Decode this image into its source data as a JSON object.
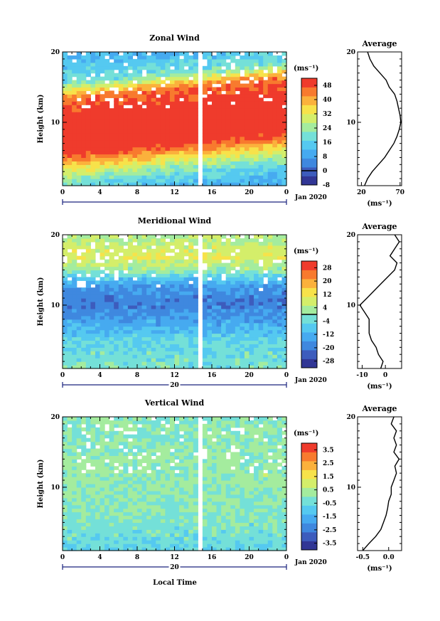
{
  "figure": {
    "date_label": "Jan 2020",
    "day_label": "20",
    "shared_xlabel": "Local Time",
    "colormap": [
      "#313695",
      "#3d5cbd",
      "#3f88df",
      "#46aaf0",
      "#55c9f0",
      "#74e0d8",
      "#a4ec9e",
      "#d4ee6a",
      "#f7e24a",
      "#fbb13c",
      "#f87a2e",
      "#ef3b2c"
    ]
  },
  "chart_data": [
    {
      "type": "heatmap",
      "title": "Zonal Wind",
      "ylabel": "Height (km)",
      "xlabel": "Local Time",
      "x_ticks": [
        "0",
        "4",
        "8",
        "12",
        "16",
        "20",
        "0"
      ],
      "xlim": [
        0,
        24
      ],
      "ylim": [
        1,
        20
      ],
      "y_ticks": [
        "10",
        "20"
      ],
      "colorbar": {
        "unit": "(ms⁻¹)",
        "ticks": [
          "48",
          "40",
          "32",
          "24",
          "16",
          "8",
          "0",
          "-8"
        ],
        "range": [
          -8,
          52
        ],
        "contour_level": 0
      },
      "z_profile_by_height": {
        "heights_km": [
          1,
          3,
          5,
          7,
          9,
          11,
          13,
          15,
          17,
          20
        ],
        "values": [
          12,
          20,
          34,
          50,
          56,
          54,
          50,
          44,
          20,
          12
        ]
      },
      "data_gaps": {
        "local_time_h": [
          14.5,
          15.0
        ],
        "note": "white = missing data"
      },
      "average_profile": {
        "title": "Average",
        "xlabel": "(ms⁻¹)",
        "x_ticks": [
          "20",
          "70"
        ],
        "xlim": [
          15,
          72
        ],
        "heights_km": [
          1,
          2,
          3,
          4,
          5,
          6,
          7,
          8,
          9,
          10,
          11,
          12,
          13,
          14,
          15,
          16,
          17,
          18,
          19,
          20
        ],
        "values": [
          24,
          28,
          34,
          42,
          50,
          56,
          62,
          66,
          69,
          71,
          70,
          68,
          66,
          63,
          56,
          52,
          44,
          36,
          31,
          28
        ]
      }
    },
    {
      "type": "heatmap",
      "title": "Meridional Wind",
      "ylabel": "Height (km)",
      "xlabel": "Local Time",
      "x_ticks": [
        "0",
        "4",
        "8",
        "12",
        "16",
        "20",
        "0"
      ],
      "xlim": [
        0,
        24
      ],
      "ylim": [
        1,
        20
      ],
      "y_ticks": [
        "10",
        "20"
      ],
      "colorbar": {
        "unit": "(ms⁻¹)",
        "ticks": [
          "28",
          "20",
          "12",
          "4",
          "-4",
          "-12",
          "-20",
          "-28"
        ],
        "range": [
          -32,
          32
        ],
        "contour_level": 0
      },
      "z_profile_by_height": {
        "heights_km": [
          1,
          3,
          5,
          7,
          9,
          11,
          13,
          15,
          17,
          20
        ],
        "values": [
          -2,
          -3,
          -6,
          -12,
          -18,
          -20,
          -14,
          2,
          10,
          4
        ]
      },
      "data_gaps": {
        "local_time_h": [
          14.5,
          15.0
        ],
        "note": "white = missing data"
      },
      "average_profile": {
        "title": "Average",
        "xlabel": "(ms⁻¹)",
        "x_ticks": [
          "-10",
          "0"
        ],
        "xlim": [
          -12,
          7
        ],
        "heights_km": [
          1,
          2,
          3,
          4,
          5,
          6,
          7,
          8,
          9,
          10,
          11,
          12,
          13,
          14,
          15,
          16,
          17,
          18,
          19,
          20
        ],
        "values": [
          -2,
          -1,
          -3,
          -4,
          -6,
          -7,
          -7,
          -7,
          -9,
          -11,
          -8,
          -5,
          -2,
          1,
          4,
          5,
          2,
          4,
          6,
          4
        ]
      }
    },
    {
      "type": "heatmap",
      "title": "Vertical Wind",
      "ylabel": "Height (km)",
      "xlabel": "Local Time",
      "x_ticks": [
        "0",
        "4",
        "8",
        "12",
        "16",
        "20",
        "0"
      ],
      "xlim": [
        0,
        24
      ],
      "ylim": [
        1,
        20
      ],
      "y_ticks": [
        "10",
        "20"
      ],
      "colorbar": {
        "unit": "(ms⁻¹)",
        "ticks": [
          "3.5",
          "2.5",
          "1.5",
          "0.5",
          "-0.5",
          "-1.5",
          "-2.5",
          "-3.5"
        ],
        "range": [
          -4,
          4
        ],
        "contour_level": null
      },
      "z_profile_by_height": {
        "heights_km": [
          1,
          3,
          5,
          7,
          9,
          11,
          13,
          15,
          17,
          20
        ],
        "values": [
          -0.6,
          -0.4,
          -0.2,
          0.0,
          0.1,
          0.2,
          0.2,
          0.1,
          0.0,
          0.0
        ]
      },
      "data_gaps": {
        "local_time_h": [
          14.5,
          15.0
        ],
        "note": "white = missing data"
      },
      "average_profile": {
        "title": "Average",
        "xlabel": "(ms⁻¹)",
        "x_ticks": [
          "-0.5",
          "0.0"
        ],
        "xlim": [
          -0.6,
          0.25
        ],
        "heights_km": [
          1,
          2,
          3,
          4,
          5,
          6,
          7,
          8,
          9,
          10,
          11,
          12,
          13,
          14,
          15,
          16,
          17,
          18,
          19,
          20
        ],
        "values": [
          -0.5,
          -0.38,
          -0.25,
          -0.15,
          -0.1,
          -0.05,
          -0.02,
          0.0,
          0.05,
          0.05,
          0.1,
          0.15,
          0.12,
          0.2,
          0.1,
          0.15,
          0.1,
          0.15,
          0.05,
          0.1
        ]
      }
    }
  ]
}
